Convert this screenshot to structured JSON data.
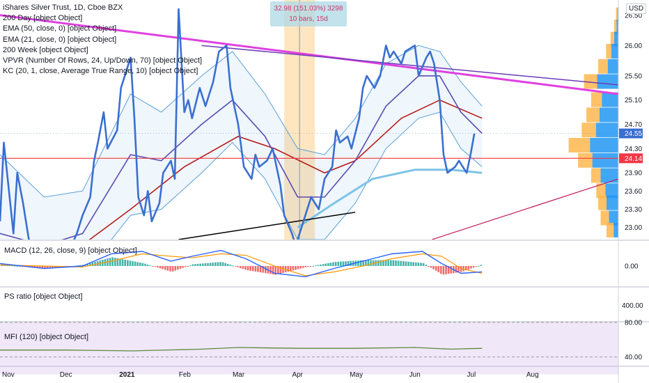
{
  "header": {
    "title": "iShares Silver Trust, 1D, Cboe BZX",
    "indicators": [
      "200 Day [object Object]",
      "EMA (50, close, 0) [object Object]",
      "EMA (21, close, 0) [object Object]",
      "200 Week [object Object]",
      "VPVR (Number Of Rows, 24, Up/Down, 70) [object Object]",
      "KC (20, 1, close, Average True Range, 10) [object Object]"
    ]
  },
  "measure": {
    "line1": "32.98 (151.03%) 3298",
    "line2": "10 bars, 15d"
  },
  "currency_button": "USD",
  "price_tags": {
    "last": "24.55",
    "hline": "24.14"
  },
  "colors": {
    "price": "#3a6fd0",
    "kc_band": "#5aa0d8",
    "ema21": "#5b4bb0",
    "ema50": "#b71c1c",
    "ma200d": "#7ec3e6",
    "trend_magenta": "#e040e0",
    "trend_purple": "#6a3cb8",
    "hline": "#f23645",
    "macd_line": "#2962ff",
    "signal_line": "#ff9800",
    "hist_up": "#26a69a",
    "hist_down": "#ef5350",
    "mfi_line": "#5b8a3c",
    "vp_up": "#2196f3",
    "vp_down": "#ffb74d"
  },
  "panes": {
    "macd_label": "MACD (12, 26, close, 9) [object Object]",
    "ps_label": "PS ratio [object Object]",
    "mfi_label": "MFI (120) [object Object]"
  },
  "chart_data": {
    "type": "line",
    "x_tick_labels": [
      "Nov",
      "Dec",
      "2021",
      "Feb",
      "Mar",
      "Apr",
      "May",
      "Jun",
      "Jul",
      "Aug"
    ],
    "price_axis": {
      "ylim": [
        22.8,
        26.75
      ],
      "ticks": [
        26.5,
        26.0,
        25.5,
        25.1,
        24.7,
        24.3,
        23.9,
        23.6,
        23.3,
        23.0
      ]
    },
    "macd_axis": {
      "ticks": [
        0.0
      ]
    },
    "ps_axis": {
      "ticks": [
        400.0
      ]
    },
    "mfi_axis": {
      "ylim": [
        30,
        80
      ],
      "ticks": [
        80.0,
        40.0
      ]
    },
    "price_series": [
      {
        "date": "2020-10-28",
        "v": 23.1
      },
      {
        "date": "2020-10-30",
        "v": 24.4
      },
      {
        "date": "2020-11-02",
        "v": 23.5
      },
      {
        "date": "2020-11-04",
        "v": 22.9
      },
      {
        "date": "2020-11-06",
        "v": 23.9
      },
      {
        "date": "2020-11-09",
        "v": 23.4
      },
      {
        "date": "2020-11-12",
        "v": 22.8
      },
      {
        "date": "2020-11-16",
        "v": 22.7
      },
      {
        "date": "2020-11-20",
        "v": 22.6
      },
      {
        "date": "2020-11-24",
        "v": 22.5
      },
      {
        "date": "2020-11-30",
        "v": 22.4
      },
      {
        "date": "2020-12-03",
        "v": 22.6
      },
      {
        "date": "2020-12-07",
        "v": 22.9
      },
      {
        "date": "2020-12-10",
        "v": 23.2
      },
      {
        "date": "2020-12-14",
        "v": 23.5
      },
      {
        "date": "2020-12-16",
        "v": 24.1
      },
      {
        "date": "2020-12-18",
        "v": 24.4
      },
      {
        "date": "2020-12-21",
        "v": 24.9
      },
      {
        "date": "2020-12-23",
        "v": 24.3
      },
      {
        "date": "2020-12-28",
        "v": 24.6
      },
      {
        "date": "2020-12-30",
        "v": 25.3
      },
      {
        "date": "2021-01-04",
        "v": 25.8
      },
      {
        "date": "2021-01-06",
        "v": 24.8
      },
      {
        "date": "2021-01-08",
        "v": 23.5
      },
      {
        "date": "2021-01-11",
        "v": 23.2
      },
      {
        "date": "2021-01-13",
        "v": 23.6
      },
      {
        "date": "2021-01-15",
        "v": 23.1
      },
      {
        "date": "2021-01-19",
        "v": 23.4
      },
      {
        "date": "2021-01-21",
        "v": 23.9
      },
      {
        "date": "2021-01-25",
        "v": 24.1
      },
      {
        "date": "2021-01-27",
        "v": 23.8
      },
      {
        "date": "2021-01-29",
        "v": 26.6
      },
      {
        "date": "2021-02-01",
        "v": 24.9
      },
      {
        "date": "2021-02-03",
        "v": 25.1
      },
      {
        "date": "2021-02-05",
        "v": 24.8
      },
      {
        "date": "2021-02-09",
        "v": 25.3
      },
      {
        "date": "2021-02-12",
        "v": 25.0
      },
      {
        "date": "2021-02-16",
        "v": 25.4
      },
      {
        "date": "2021-02-19",
        "v": 25.9
      },
      {
        "date": "2021-02-23",
        "v": 26.0
      },
      {
        "date": "2021-02-25",
        "v": 25.3
      },
      {
        "date": "2021-03-01",
        "v": 24.7
      },
      {
        "date": "2021-03-04",
        "v": 24.0
      },
      {
        "date": "2021-03-08",
        "v": 23.8
      },
      {
        "date": "2021-03-10",
        "v": 24.2
      },
      {
        "date": "2021-03-12",
        "v": 24.0
      },
      {
        "date": "2021-03-16",
        "v": 24.1
      },
      {
        "date": "2021-03-19",
        "v": 24.3
      },
      {
        "date": "2021-03-23",
        "v": 23.7
      },
      {
        "date": "2021-03-25",
        "v": 23.2
      },
      {
        "date": "2021-03-29",
        "v": 22.9
      },
      {
        "date": "2021-03-31",
        "v": 22.7
      },
      {
        "date": "2021-04-05",
        "v": 23.2
      },
      {
        "date": "2021-04-08",
        "v": 23.5
      },
      {
        "date": "2021-04-12",
        "v": 23.3
      },
      {
        "date": "2021-04-15",
        "v": 23.8
      },
      {
        "date": "2021-04-19",
        "v": 24.0
      },
      {
        "date": "2021-04-21",
        "v": 24.6
      },
      {
        "date": "2021-04-23",
        "v": 24.4
      },
      {
        "date": "2021-04-27",
        "v": 24.5
      },
      {
        "date": "2021-04-29",
        "v": 24.3
      },
      {
        "date": "2021-05-03",
        "v": 24.8
      },
      {
        "date": "2021-05-05",
        "v": 25.3
      },
      {
        "date": "2021-05-07",
        "v": 25.5
      },
      {
        "date": "2021-05-11",
        "v": 25.3
      },
      {
        "date": "2021-05-14",
        "v": 25.5
      },
      {
        "date": "2021-05-17",
        "v": 26.0
      },
      {
        "date": "2021-05-19",
        "v": 25.8
      },
      {
        "date": "2021-05-21",
        "v": 25.9
      },
      {
        "date": "2021-05-25",
        "v": 25.7
      },
      {
        "date": "2021-05-27",
        "v": 25.9
      },
      {
        "date": "2021-06-01",
        "v": 26.0
      },
      {
        "date": "2021-06-03",
        "v": 25.5
      },
      {
        "date": "2021-06-07",
        "v": 25.8
      },
      {
        "date": "2021-06-09",
        "v": 25.9
      },
      {
        "date": "2021-06-11",
        "v": 25.7
      },
      {
        "date": "2021-06-14",
        "v": 25.1
      },
      {
        "date": "2021-06-16",
        "v": 24.2
      },
      {
        "date": "2021-06-18",
        "v": 23.9
      },
      {
        "date": "2021-06-22",
        "v": 24.0
      },
      {
        "date": "2021-06-24",
        "v": 24.1
      },
      {
        "date": "2021-06-28",
        "v": 23.9
      },
      {
        "date": "2021-06-30",
        "v": 24.2
      },
      {
        "date": "2021-07-02",
        "v": 24.55
      }
    ],
    "ema21": [
      {
        "date": "2020-10-28",
        "v": 22.9
      },
      {
        "date": "2020-11-20",
        "v": 22.7
      },
      {
        "date": "2020-12-10",
        "v": 22.9
      },
      {
        "date": "2021-01-04",
        "v": 24.2
      },
      {
        "date": "2021-01-20",
        "v": 24.1
      },
      {
        "date": "2021-02-10",
        "v": 24.7
      },
      {
        "date": "2021-02-26",
        "v": 25.1
      },
      {
        "date": "2021-03-15",
        "v": 24.5
      },
      {
        "date": "2021-04-01",
        "v": 23.5
      },
      {
        "date": "2021-04-15",
        "v": 23.5
      },
      {
        "date": "2021-05-01",
        "v": 24.1
      },
      {
        "date": "2021-05-17",
        "v": 25.0
      },
      {
        "date": "2021-06-03",
        "v": 25.5
      },
      {
        "date": "2021-06-14",
        "v": 25.5
      },
      {
        "date": "2021-06-25",
        "v": 24.9
      },
      {
        "date": "2021-07-06",
        "v": 24.55
      }
    ],
    "ema50": [
      {
        "date": "2020-10-28",
        "v": 22.4
      },
      {
        "date": "2020-12-01",
        "v": 22.5
      },
      {
        "date": "2021-01-04",
        "v": 23.3
      },
      {
        "date": "2021-02-01",
        "v": 24.0
      },
      {
        "date": "2021-03-01",
        "v": 24.5
      },
      {
        "date": "2021-03-20",
        "v": 24.3
      },
      {
        "date": "2021-04-15",
        "v": 23.9
      },
      {
        "date": "2021-05-01",
        "v": 24.1
      },
      {
        "date": "2021-05-25",
        "v": 24.8
      },
      {
        "date": "2021-06-14",
        "v": 25.1
      },
      {
        "date": "2021-07-06",
        "v": 24.8
      }
    ],
    "ma200d": [
      {
        "date": "2021-04-01",
        "v": 23.0
      },
      {
        "date": "2021-04-20",
        "v": 23.4
      },
      {
        "date": "2021-05-10",
        "v": 23.8
      },
      {
        "date": "2021-06-01",
        "v": 23.95
      },
      {
        "date": "2021-06-20",
        "v": 23.95
      },
      {
        "date": "2021-07-06",
        "v": 23.9
      }
    ],
    "kc_upper": [
      {
        "date": "2020-10-28",
        "v": 24.2
      },
      {
        "date": "2020-11-20",
        "v": 23.5
      },
      {
        "date": "2020-12-10",
        "v": 23.6
      },
      {
        "date": "2021-01-04",
        "v": 25.2
      },
      {
        "date": "2021-01-20",
        "v": 24.9
      },
      {
        "date": "2021-02-10",
        "v": 25.5
      },
      {
        "date": "2021-02-26",
        "v": 25.9
      },
      {
        "date": "2021-03-15",
        "v": 25.2
      },
      {
        "date": "2021-04-01",
        "v": 24.3
      },
      {
        "date": "2021-04-15",
        "v": 24.2
      },
      {
        "date": "2021-05-01",
        "v": 24.8
      },
      {
        "date": "2021-05-17",
        "v": 25.7
      },
      {
        "date": "2021-06-03",
        "v": 26.0
      },
      {
        "date": "2021-06-14",
        "v": 25.9
      },
      {
        "date": "2021-06-25",
        "v": 25.4
      },
      {
        "date": "2021-07-06",
        "v": 25.0
      }
    ],
    "kc_lower": [
      {
        "date": "2020-10-28",
        "v": 22.0
      },
      {
        "date": "2020-11-20",
        "v": 21.9
      },
      {
        "date": "2020-12-10",
        "v": 22.2
      },
      {
        "date": "2021-01-04",
        "v": 23.2
      },
      {
        "date": "2021-01-20",
        "v": 23.3
      },
      {
        "date": "2021-02-10",
        "v": 23.9
      },
      {
        "date": "2021-02-26",
        "v": 24.4
      },
      {
        "date": "2021-03-15",
        "v": 23.8
      },
      {
        "date": "2021-04-01",
        "v": 22.8
      },
      {
        "date": "2021-04-15",
        "v": 22.8
      },
      {
        "date": "2021-05-01",
        "v": 23.4
      },
      {
        "date": "2021-05-17",
        "v": 24.3
      },
      {
        "date": "2021-06-03",
        "v": 24.8
      },
      {
        "date": "2021-06-14",
        "v": 24.9
      },
      {
        "date": "2021-06-25",
        "v": 24.3
      },
      {
        "date": "2021-07-06",
        "v": 24.0
      }
    ],
    "trendlines": [
      {
        "name": "magenta",
        "from": {
          "date": "2020-10-28",
          "v": 26.5
        },
        "to": {
          "date": "2021-09-15",
          "v": 25.2
        }
      },
      {
        "name": "purple",
        "from": {
          "date": "2021-02-10",
          "v": 26.0
        },
        "to": {
          "date": "2021-09-15",
          "v": 25.35
        }
      },
      {
        "name": "black",
        "from": {
          "date": "2021-01-29",
          "v": 22.8
        },
        "to": {
          "date": "2021-05-01",
          "v": 23.25
        }
      },
      {
        "name": "red",
        "from": {
          "date": "2021-06-10",
          "v": 22.8
        },
        "to": {
          "date": "2021-09-15",
          "v": 23.8
        }
      }
    ],
    "hline": 24.14,
    "highlight_range": {
      "from": "2021-03-25",
      "to": "2021-04-10"
    },
    "volume_profile": [
      {
        "price": 26.5,
        "up": 4,
        "down": 6
      },
      {
        "price": 26.3,
        "up": 8,
        "down": 10
      },
      {
        "price": 26.1,
        "up": 18,
        "down": 15
      },
      {
        "price": 25.9,
        "up": 30,
        "down": 22
      },
      {
        "price": 25.65,
        "up": 45,
        "down": 40
      },
      {
        "price": 25.4,
        "up": 90,
        "down": 55
      },
      {
        "price": 25.1,
        "up": 70,
        "down": 45
      },
      {
        "price": 24.85,
        "up": 80,
        "down": 55
      },
      {
        "price": 24.6,
        "up": 95,
        "down": 60
      },
      {
        "price": 24.35,
        "up": 120,
        "down": 90
      },
      {
        "price": 24.1,
        "up": 110,
        "down": 60
      },
      {
        "price": 23.85,
        "up": 75,
        "down": 40
      },
      {
        "price": 23.6,
        "up": 55,
        "down": 38
      },
      {
        "price": 23.4,
        "up": 50,
        "down": 35
      },
      {
        "price": 23.15,
        "up": 40,
        "down": 35
      },
      {
        "price": 22.95,
        "up": 20,
        "down": 30
      }
    ],
    "macd": [
      {
        "date": "2020-10-28",
        "macd": 0.05,
        "signal": 0.02
      },
      {
        "date": "2020-11-20",
        "macd": -0.05,
        "signal": 0.0
      },
      {
        "date": "2020-12-10",
        "macd": 0.0,
        "signal": -0.02
      },
      {
        "date": "2020-12-25",
        "macd": 0.25,
        "signal": 0.1
      },
      {
        "date": "2021-01-10",
        "macd": 0.3,
        "signal": 0.25
      },
      {
        "date": "2021-01-25",
        "macd": 0.1,
        "signal": 0.2
      },
      {
        "date": "2021-02-05",
        "macd": 0.2,
        "signal": 0.17
      },
      {
        "date": "2021-02-20",
        "macd": 0.32,
        "signal": 0.25
      },
      {
        "date": "2021-03-05",
        "macd": 0.15,
        "signal": 0.22
      },
      {
        "date": "2021-03-20",
        "macd": -0.15,
        "signal": 0.0
      },
      {
        "date": "2021-04-05",
        "macd": -0.22,
        "signal": -0.2
      },
      {
        "date": "2021-04-20",
        "macd": -0.05,
        "signal": -0.12
      },
      {
        "date": "2021-05-05",
        "macd": 0.1,
        "signal": 0.0
      },
      {
        "date": "2021-05-20",
        "macd": 0.25,
        "signal": 0.15
      },
      {
        "date": "2021-06-05",
        "macd": 0.3,
        "signal": 0.25
      },
      {
        "date": "2021-06-15",
        "macd": 0.05,
        "signal": 0.2
      },
      {
        "date": "2021-06-25",
        "macd": -0.15,
        "signal": -0.05
      },
      {
        "date": "2021-07-06",
        "macd": -0.12,
        "signal": -0.15
      }
    ],
    "mfi": [
      {
        "date": "2020-10-28",
        "v": 48
      },
      {
        "date": "2020-12-01",
        "v": 48
      },
      {
        "date": "2021-01-05",
        "v": 47
      },
      {
        "date": "2021-02-10",
        "v": 49
      },
      {
        "date": "2021-03-01",
        "v": 51
      },
      {
        "date": "2021-04-01",
        "v": 50
      },
      {
        "date": "2021-05-01",
        "v": 50
      },
      {
        "date": "2021-06-01",
        "v": 51
      },
      {
        "date": "2021-06-20",
        "v": 49
      },
      {
        "date": "2021-07-06",
        "v": 50
      }
    ]
  }
}
